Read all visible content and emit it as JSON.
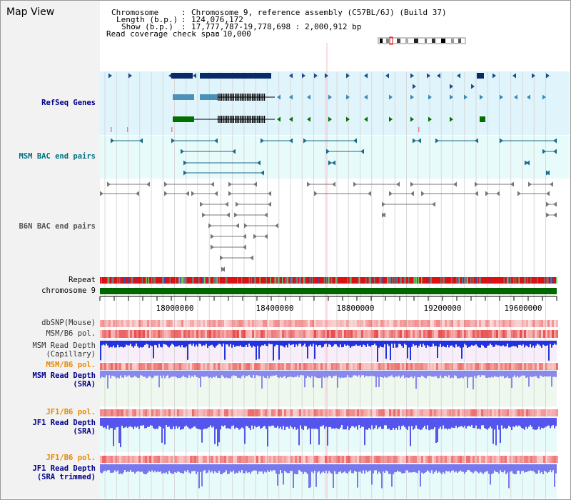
{
  "app_title": "Map View",
  "header": {
    "chromosome_key": "Chromosome",
    "chromosome_value": "Chromosome 9, reference assembly (C57BL/6J) (Build 37)",
    "length_key": "Length (b.p.)",
    "length_value": "124,076,172",
    "show_key": "Show (b.p.)",
    "show_value": "17,777,787-19,778,698 : 2,000,912 bp",
    "coverage_key": "Read coverage check span",
    "coverage_value": "10,000"
  },
  "tracks": {
    "refseq": "RefSeq Genes",
    "msm_bac": "MSM BAC end pairs",
    "b6n_bac": "B6N BAC end pairs",
    "repeat": "Repeat",
    "chromosome": "chromosome 9",
    "dbsnp": "dbSNP(Mouse)",
    "msm_b6_pol": "MSM/B6 pol.",
    "msm_depth_cap_1": "MSM Read Depth",
    "msm_depth_cap_2": "(Capillary)",
    "msm_b6_pol_2": "MSM/B6 pol.",
    "msm_depth_sra_1": "MSM Read Depth",
    "msm_depth_sra_2": "(SRA)",
    "jf1_pol_1": "JF1/B6 pol.",
    "jf1_depth_sra_1": "JF1 Read Depth",
    "jf1_depth_sra_2": "(SRA)",
    "jf1_pol_2": "JF1/B6 pol.",
    "jf1_depth_trim_1": "JF1 Read Depth",
    "jf1_depth_trim_2": "(SRA trimmed)"
  },
  "axis": {
    "ticks": [
      "18000000",
      "18400000",
      "18800000",
      "19200000",
      "19600000"
    ]
  },
  "colors": {
    "refseq_bg": "#e0f4fb",
    "msm_bac_bg": "#e8fbfb",
    "label_blue": "#00008b",
    "label_teal": "#007080",
    "label_gray": "#555555",
    "label_orange": "#e68a00",
    "chromosome_green": "#006600",
    "depth_blue": "#3333ff"
  }
}
